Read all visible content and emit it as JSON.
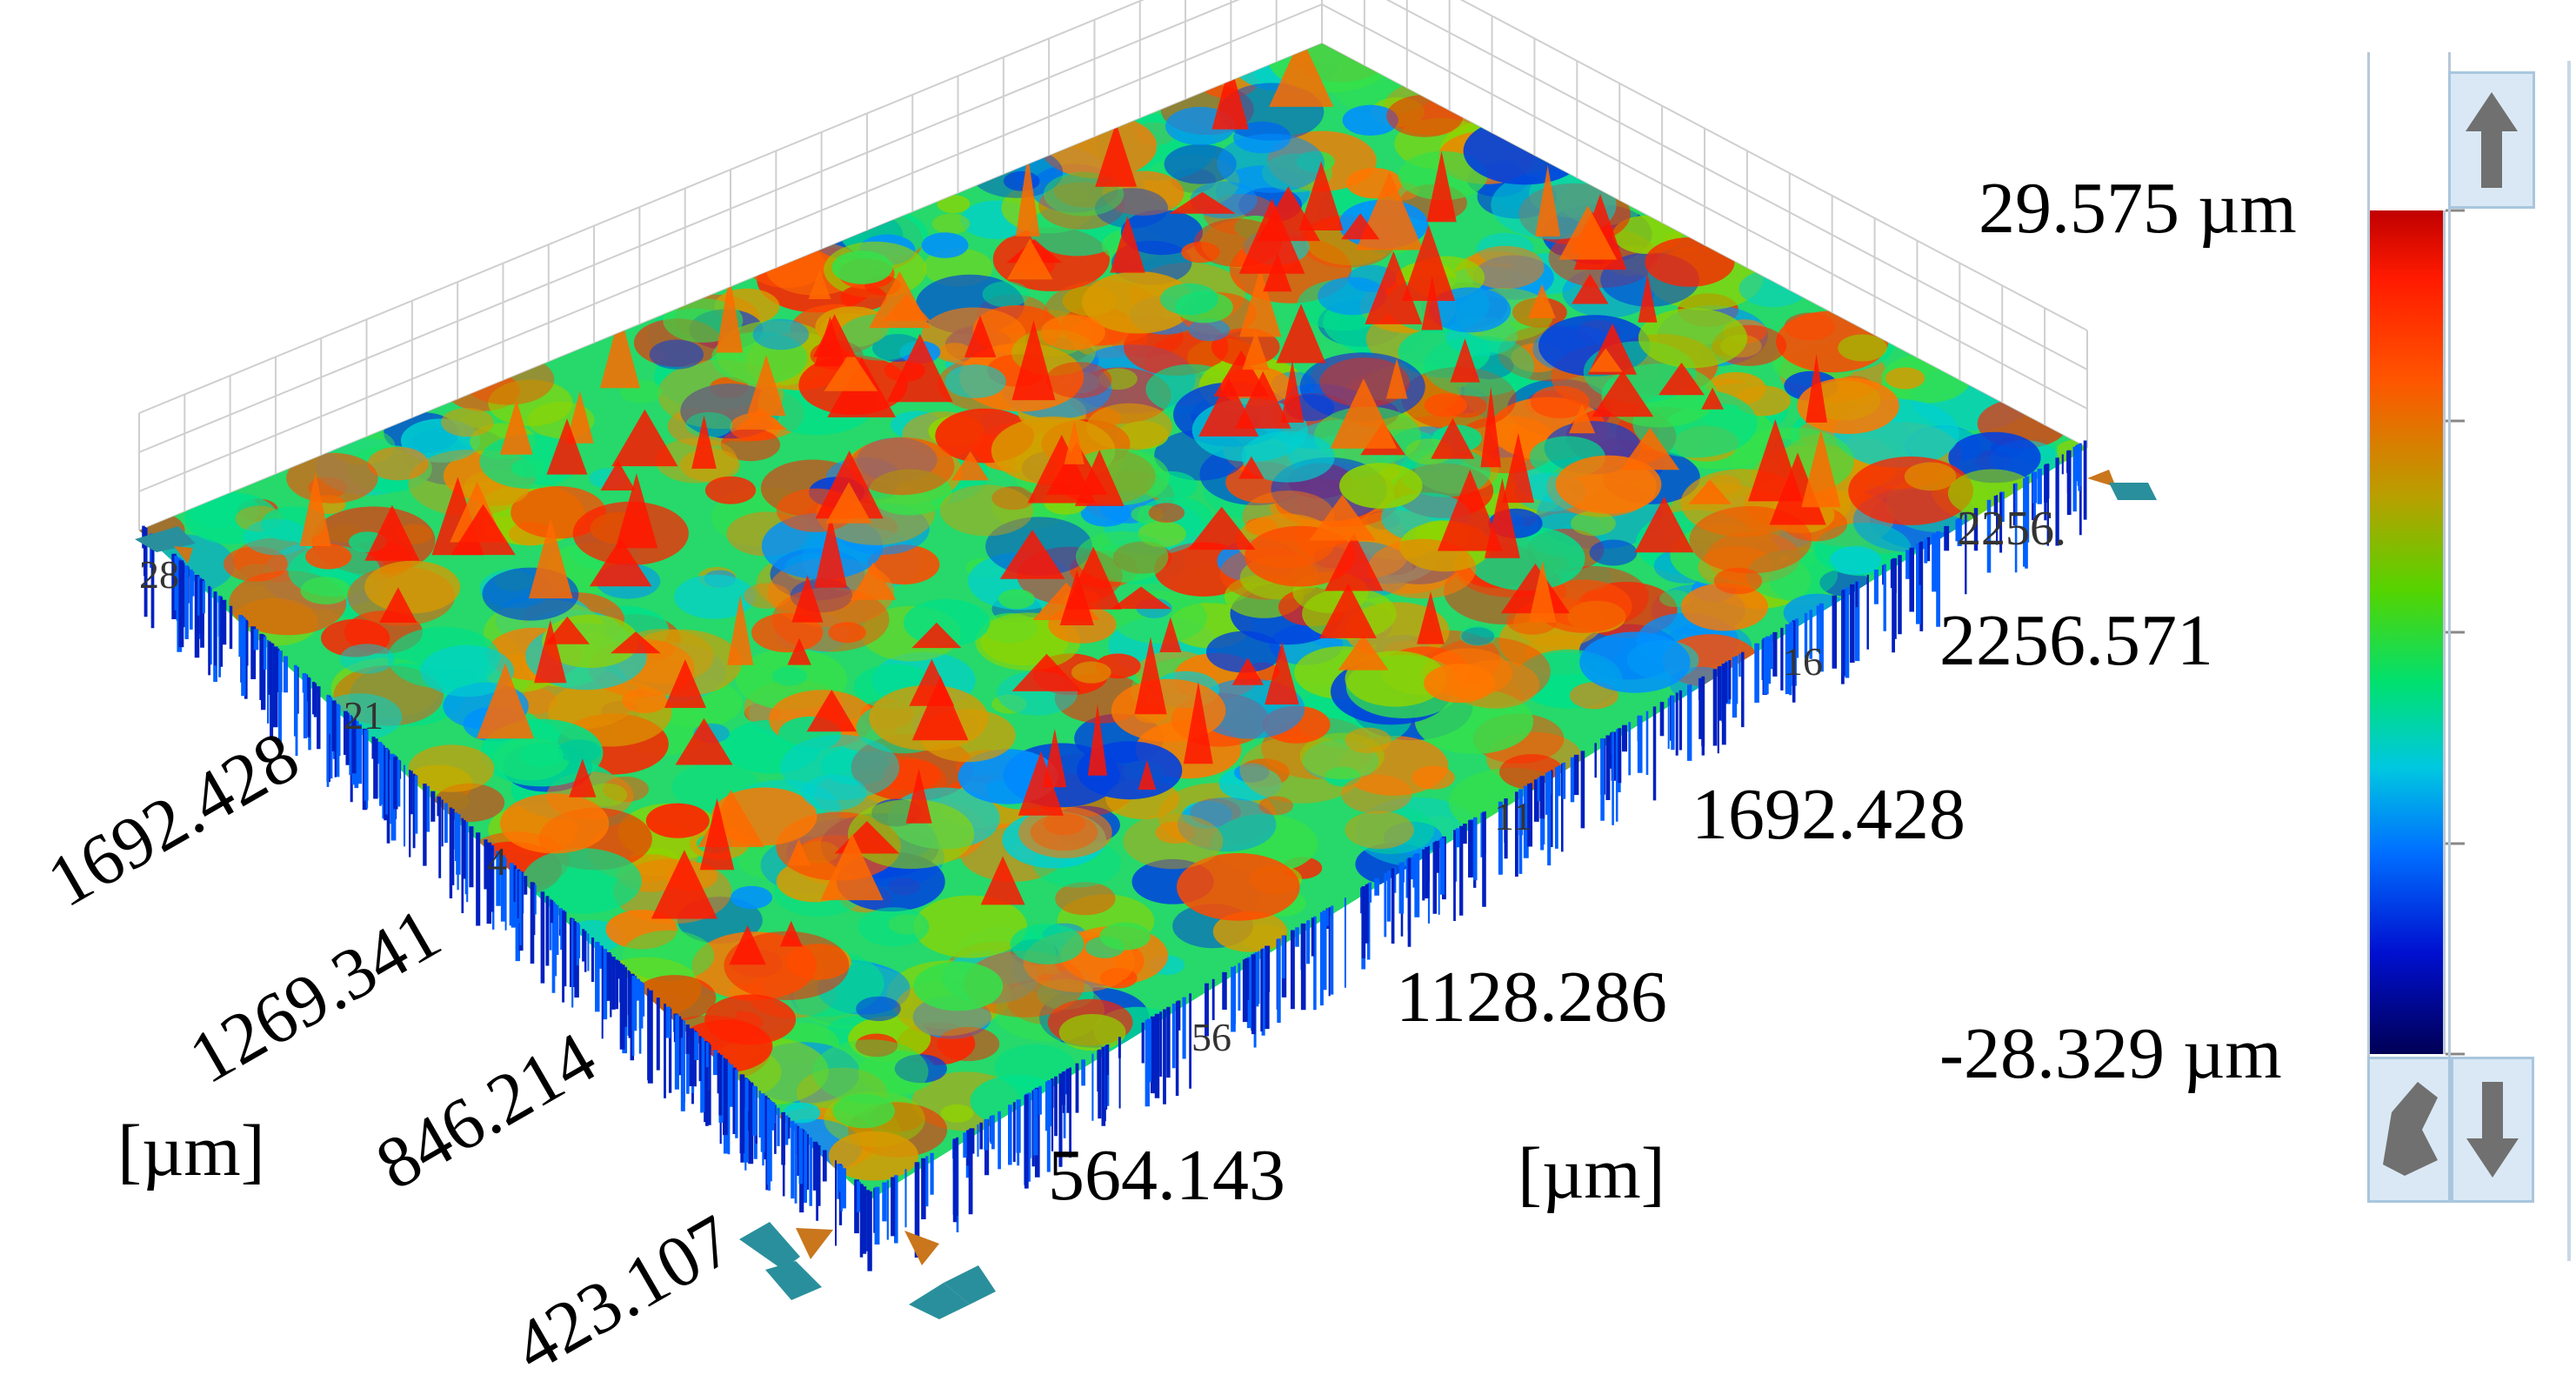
{
  "surface_view": {
    "x_axis": {
      "unit_label": "[µm]",
      "ticks": [
        "564.143",
        "1128.286",
        "1692.428",
        "2256.571"
      ]
    },
    "y_axis": {
      "unit_label": "[µm]",
      "ticks": [
        "423.107",
        "846.214",
        "1269.341",
        "1692.428"
      ]
    },
    "far_edge_partial_ticks": [
      "56",
      "11",
      "16",
      "2256.",
      "28",
      "21",
      "4"
    ]
  },
  "color_scale": {
    "max_label": "29.575 µm",
    "min_label": "-28.329 µm",
    "colors": [
      "#8b0000",
      "#ff0000",
      "#ff6a00",
      "#c8a000",
      "#7fd200",
      "#00e060",
      "#00c8e0",
      "#0070ff",
      "#0010c8",
      "#000060"
    ]
  },
  "controls": {
    "scroll_up": "arrow-up-icon",
    "scroll_down": "arrow-down-icon",
    "reset_view": "pointer-icon",
    "rotate_left": "rotate-left-icon",
    "rotate_right": "rotate-right-icon"
  }
}
